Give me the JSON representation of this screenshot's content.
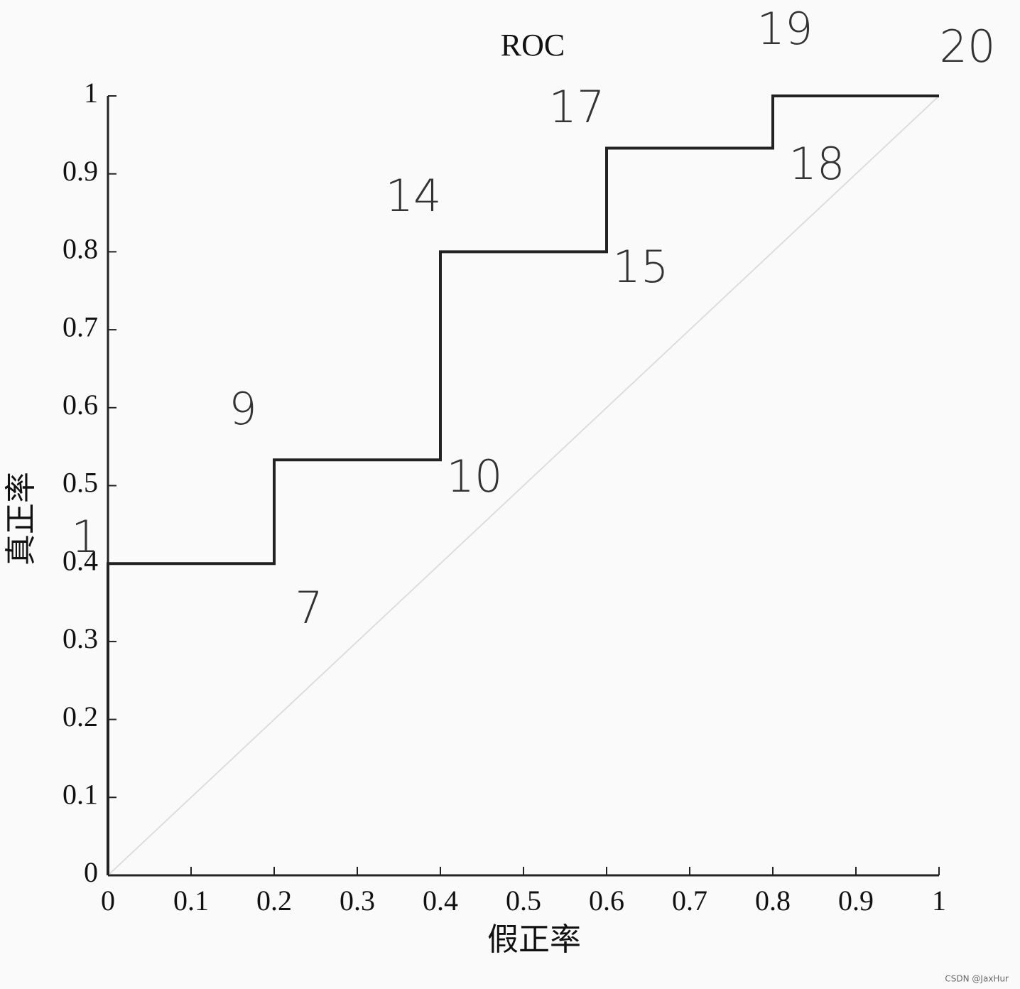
{
  "chart_data": {
    "type": "line",
    "title": "ROC",
    "x_label": "假正率",
    "y_label": "真正率",
    "x": [
      0,
      0,
      0.2,
      0.2,
      0.4,
      0.4,
      0.6,
      0.6,
      0.8,
      0.8,
      1
    ],
    "series": [
      {
        "color": "#222222",
        "values": [
          0,
          0.4,
          0.4,
          0.533,
          0.533,
          0.8,
          0.8,
          0.933,
          0.933,
          1,
          1
        ]
      }
    ],
    "xlim": [
      0,
      1
    ],
    "ylim": [
      0,
      1
    ],
    "xticks": [
      0,
      0.1,
      0.2,
      0.3,
      0.4,
      0.5,
      0.6,
      0.7,
      0.8,
      0.9,
      1
    ],
    "yticks": [
      0,
      0.1,
      0.2,
      0.3,
      0.4,
      0.5,
      0.6,
      0.7,
      0.8,
      0.9,
      1
    ],
    "annotations": [
      "1",
      "7",
      "9",
      "10",
      "14",
      "15",
      "17",
      "18",
      "19",
      "20"
    ],
    "watermark": "CSDN @JaxHur"
  }
}
